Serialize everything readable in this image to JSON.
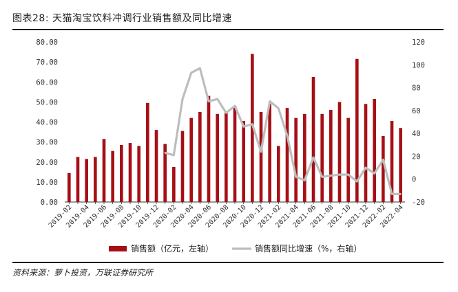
{
  "title": "图表28:  天猫淘宝饮料冲调行业销售额及同比增速",
  "source": "资料来源：萝卜投资，万联证券研究所",
  "colors": {
    "bar": "#a50f15",
    "line": "#bdbdbd",
    "rule": "#1b1b1b"
  },
  "chart_data": {
    "type": "bar",
    "categories": [
      "2019-02",
      "2019-03",
      "2019-04",
      "2019-05",
      "2019-06",
      "2019-07",
      "2019-08",
      "2019-09",
      "2019-10",
      "2019-11",
      "2019-12",
      "2020-01",
      "2020-02",
      "2020-03",
      "2020-04",
      "2020-05",
      "2020-06",
      "2020-07",
      "2020-08",
      "2020-09",
      "2020-10",
      "2020-11",
      "2020-12",
      "2021-01",
      "2021-02",
      "2021-03",
      "2021-04",
      "2021-05",
      "2021-06",
      "2021-07",
      "2021-08",
      "2021-09",
      "2021-10",
      "2021-11",
      "2021-12",
      "2022-01",
      "2022-02",
      "2022-03",
      "2022-04"
    ],
    "x_tick_labels": [
      "2019-02",
      "2019-04",
      "2019-06",
      "2019-08",
      "2019-10",
      "2019-12",
      "2020-02",
      "2020-04",
      "2020-06",
      "2020-08",
      "2020-10",
      "2020-12",
      "2021-02",
      "2021-04",
      "2021-06",
      "2021-08",
      "2021-10",
      "2021-12",
      "2022-02",
      "2022-04"
    ],
    "series": [
      {
        "name": "销售额（亿元，左轴）",
        "axis": "left",
        "type": "bar",
        "values": [
          14.5,
          22.5,
          21.5,
          22.5,
          31.5,
          25.5,
          28.5,
          29.5,
          28.0,
          49.5,
          36.0,
          29.0,
          17.5,
          35.5,
          42.0,
          45.0,
          53.0,
          44.0,
          45.0,
          48.0,
          40.5,
          74.0,
          45.0,
          49.0,
          28.0,
          47.0,
          42.0,
          44.0,
          62.5,
          44.0,
          46.0,
          50.0,
          42.0,
          71.5,
          49.0,
          51.5,
          33.0,
          40.5,
          37.0
        ]
      },
      {
        "name": "销售额同比增速（%，右轴）",
        "axis": "right",
        "type": "line",
        "values": [
          null,
          null,
          null,
          null,
          null,
          null,
          null,
          null,
          null,
          null,
          null,
          23,
          21,
          70,
          93,
          97,
          68,
          70,
          58,
          64,
          46,
          48,
          24,
          68,
          62,
          38,
          2,
          -1,
          19,
          2,
          3,
          4,
          4,
          -2,
          10,
          5,
          17,
          -13,
          -13
        ]
      }
    ],
    "y_left": {
      "ticks": [
        "0.00",
        "10.00",
        "20.00",
        "30.00",
        "40.00",
        "50.00",
        "60.00",
        "70.00",
        "80.00"
      ],
      "ylim": [
        0,
        80
      ]
    },
    "y_right": {
      "ticks": [
        "-20",
        "0",
        "20",
        "40",
        "60",
        "80",
        "100",
        "120"
      ],
      "ylim": [
        -20,
        120
      ]
    },
    "legend": {
      "placement": "bottom"
    },
    "grid": false
  }
}
